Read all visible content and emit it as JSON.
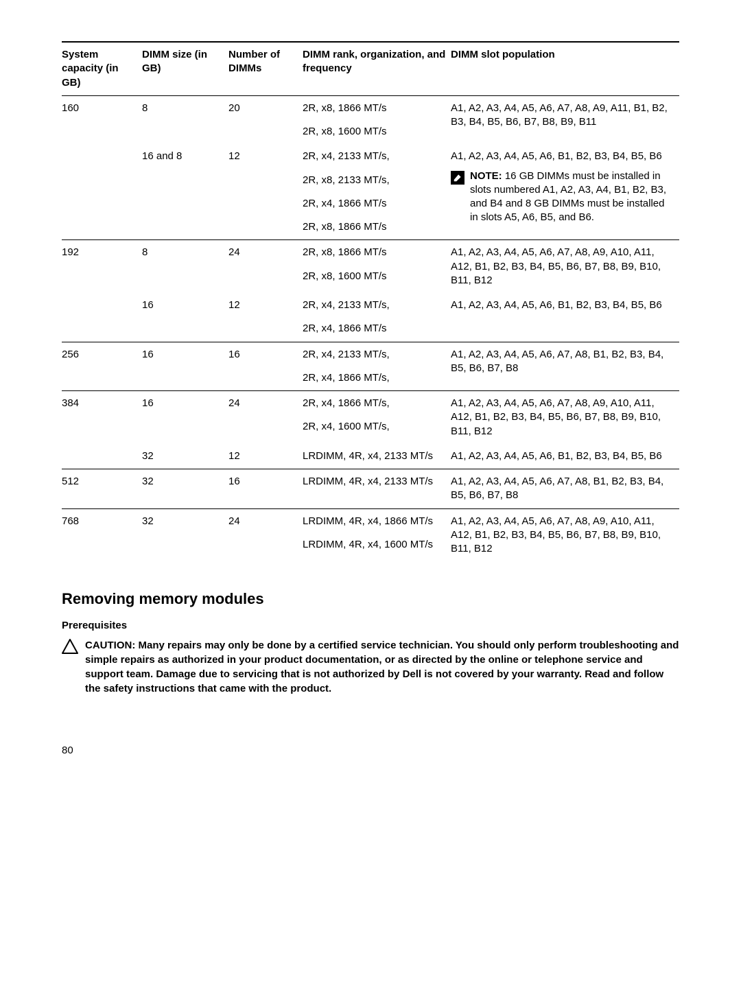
{
  "table": {
    "headers": {
      "c1": "System capacity (in GB)",
      "c2": "DIMM size (in GB)",
      "c3": "Number of DIMMs",
      "c4": "DIMM rank, organization, and frequency",
      "c5": "DIMM slot population"
    },
    "rows": [
      {
        "sep": true,
        "c1": "160",
        "c2": "8",
        "c3": "20",
        "freq": [
          "2R, x8, 1866 MT/s",
          "2R, x8, 1600 MT/s"
        ],
        "pop": "A1, A2, A3, A4, A5, A6, A7, A8, A9, A11, B1, B2, B3, B4, B5, B6, B7, B8, B9, B11"
      },
      {
        "sep": false,
        "c1": "",
        "c2": "16 and 8",
        "c3": "12",
        "freq": [
          "2R, x4, 2133 MT/s,",
          "2R, x8, 2133 MT/s,",
          "2R, x4, 1866 MT/s",
          "2R, x8, 1866 MT/s"
        ],
        "pop": "A1, A2, A3, A4, A5, A6, B1, B2, B3, B4, B5, B6",
        "note": {
          "label": "NOTE:",
          "text": " 16 GB DIMMs must be installed in slots numbered A1, A2, A3, A4, B1, B2, B3, and B4 and 8 GB DIMMs must be installed in slots A5, A6, B5, and B6."
        }
      },
      {
        "sep": true,
        "c1": "192",
        "c2": "8",
        "c3": "24",
        "freq": [
          "2R, x8, 1866 MT/s",
          "2R, x8, 1600 MT/s"
        ],
        "pop": "A1, A2, A3, A4, A5, A6, A7, A8, A9, A10, A11, A12, B1, B2, B3, B4, B5, B6, B7, B8, B9, B10, B11, B12"
      },
      {
        "sep": false,
        "c1": "",
        "c2": "16",
        "c3": "12",
        "freq": [
          "2R, x4, 2133 MT/s,",
          "2R, x4, 1866 MT/s"
        ],
        "pop": "A1, A2, A3, A4, A5, A6, B1, B2, B3, B4, B5, B6"
      },
      {
        "sep": true,
        "c1": "256",
        "c2": "16",
        "c3": "16",
        "freq": [
          "2R, x4, 2133 MT/s,",
          "2R, x4, 1866 MT/s,"
        ],
        "pop": "A1, A2, A3, A4, A5, A6, A7, A8, B1, B2, B3, B4, B5, B6, B7, B8"
      },
      {
        "sep": true,
        "c1": "384",
        "c2": "16",
        "c3": "24",
        "freq": [
          "2R, x4, 1866 MT/s,",
          "2R, x4, 1600 MT/s,"
        ],
        "pop": "A1, A2, A3, A4, A5, A6, A7, A8, A9, A10, A11, A12, B1, B2, B3, B4, B5, B6, B7, B8, B9, B10, B11, B12"
      },
      {
        "sep": false,
        "c1": "",
        "c2": "32",
        "c3": "12",
        "freq": [
          "LRDIMM, 4R, x4, 2133 MT/s"
        ],
        "pop": "A1, A2, A3, A4, A5, A6, B1, B2, B3, B4, B5, B6"
      },
      {
        "sep": true,
        "c1": "512",
        "c2": "32",
        "c3": "16",
        "freq": [
          "LRDIMM, 4R, x4, 2133 MT/s"
        ],
        "pop": "A1, A2, A3, A4, A5, A6, A7, A8, B1, B2, B3, B4, B5, B6, B7, B8"
      },
      {
        "sep": true,
        "c1": "768",
        "c2": "32",
        "c3": "24",
        "freq": [
          "LRDIMM, 4R, x4, 1866 MT/s",
          "LRDIMM, 4R, x4, 1600 MT/s"
        ],
        "pop": "A1, A2, A3, A4, A5, A6, A7, A8, A9, A10, A11, A12, B1, B2, B3, B4, B5, B6, B7, B8, B9, B10, B11, B12"
      }
    ]
  },
  "section_heading": "Removing memory modules",
  "prereq_heading": "Prerequisites",
  "caution": "CAUTION: Many repairs may only be done by a certified service technician. You should only perform troubleshooting and simple repairs as authorized in your product documentation, or as directed by the online or telephone service and support team. Damage due to servicing that is not authorized by Dell is not covered by your warranty. Read and follow the safety instructions that came with the product.",
  "page_number": "80"
}
